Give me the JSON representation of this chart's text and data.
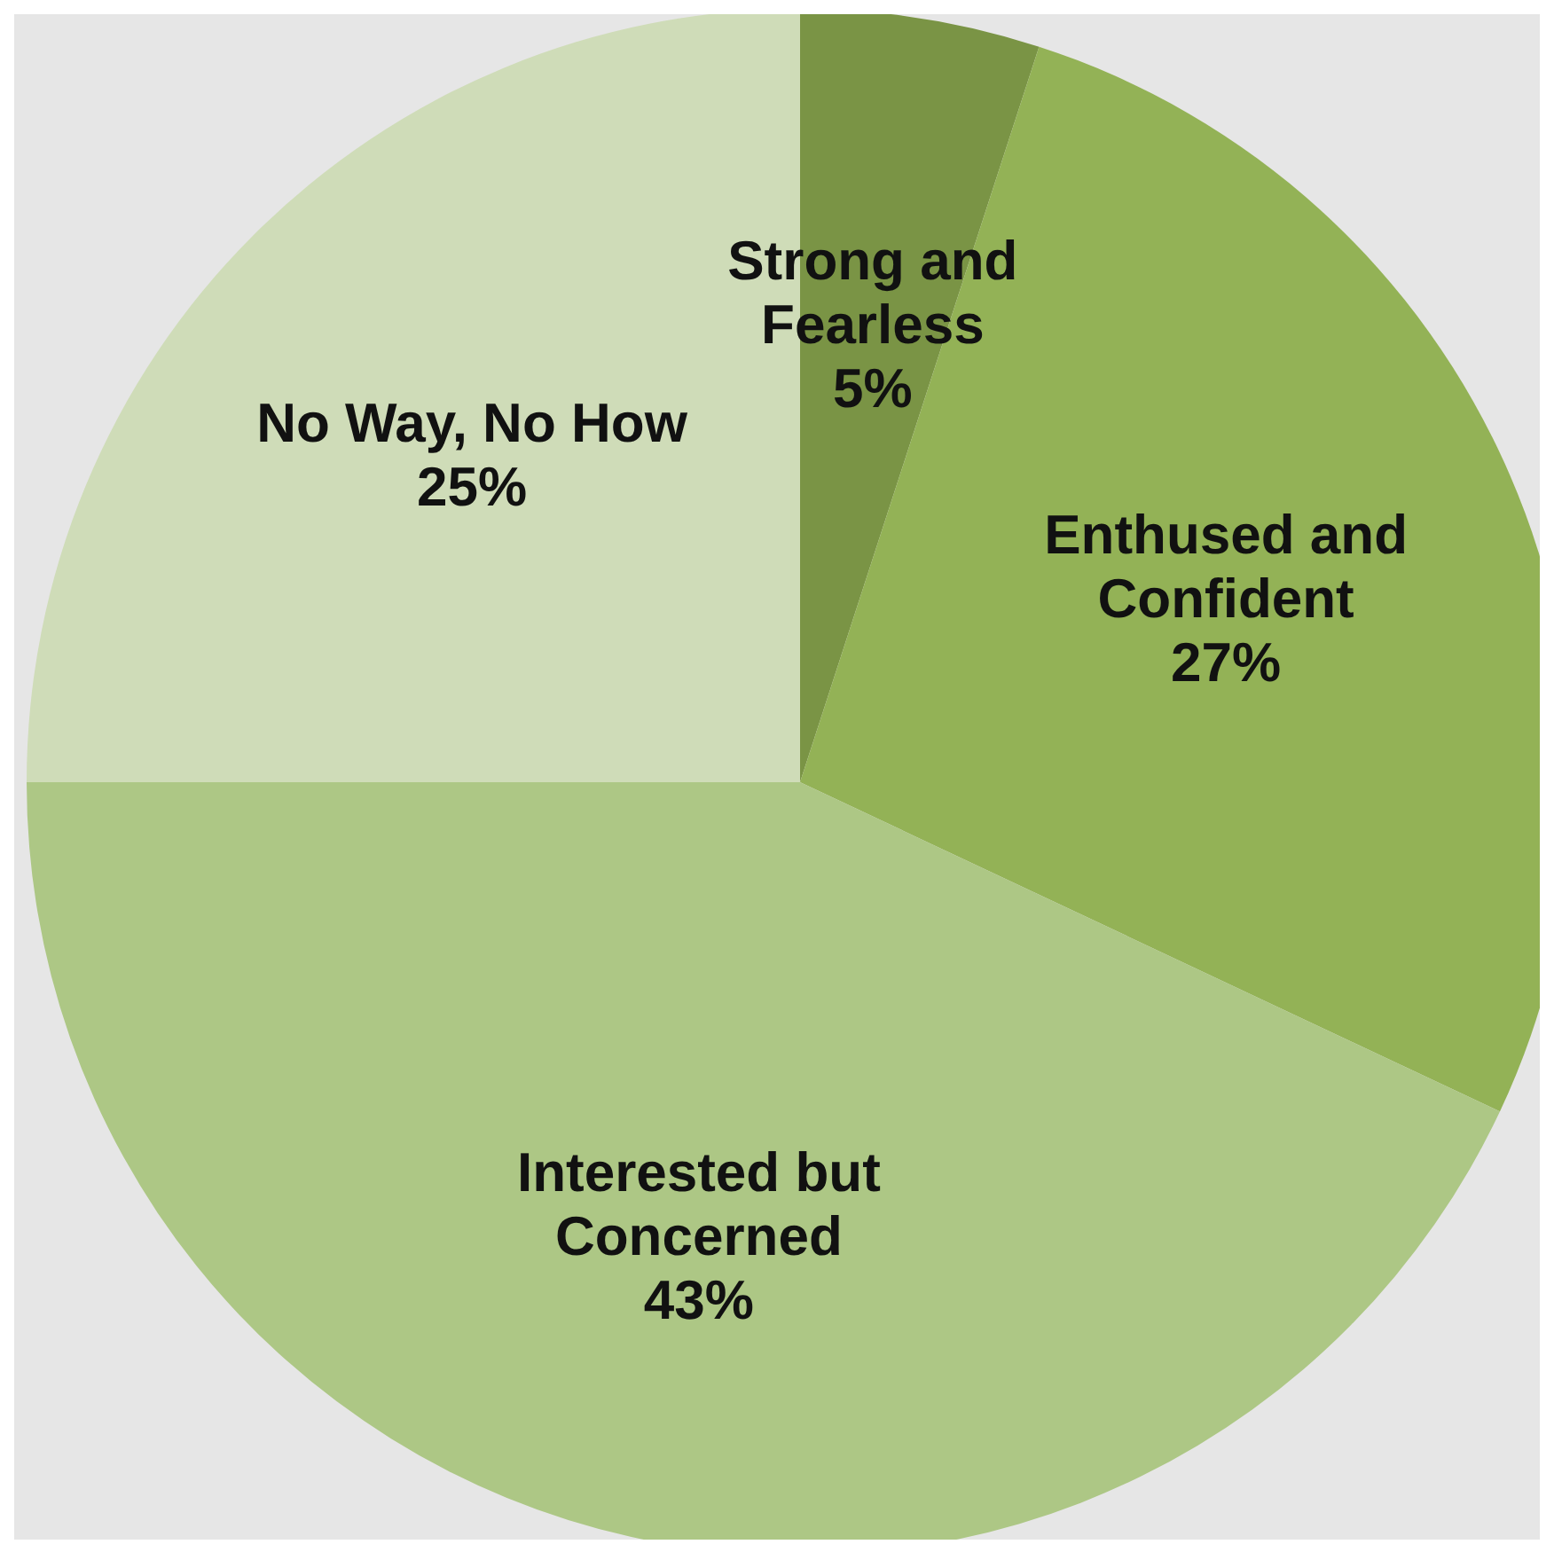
{
  "chart_data": {
    "type": "pie",
    "categories": [
      "Strong and Fearless",
      "Enthused and Confident",
      "Interested but Concerned",
      "No Way, No How"
    ],
    "values": [
      5,
      27,
      43,
      25
    ],
    "colors": [
      "#7a9445",
      "#93b256",
      "#adc785",
      "#cfdcb8"
    ],
    "value_labels": [
      "5%",
      "27%",
      "43%",
      "25%"
    ]
  }
}
